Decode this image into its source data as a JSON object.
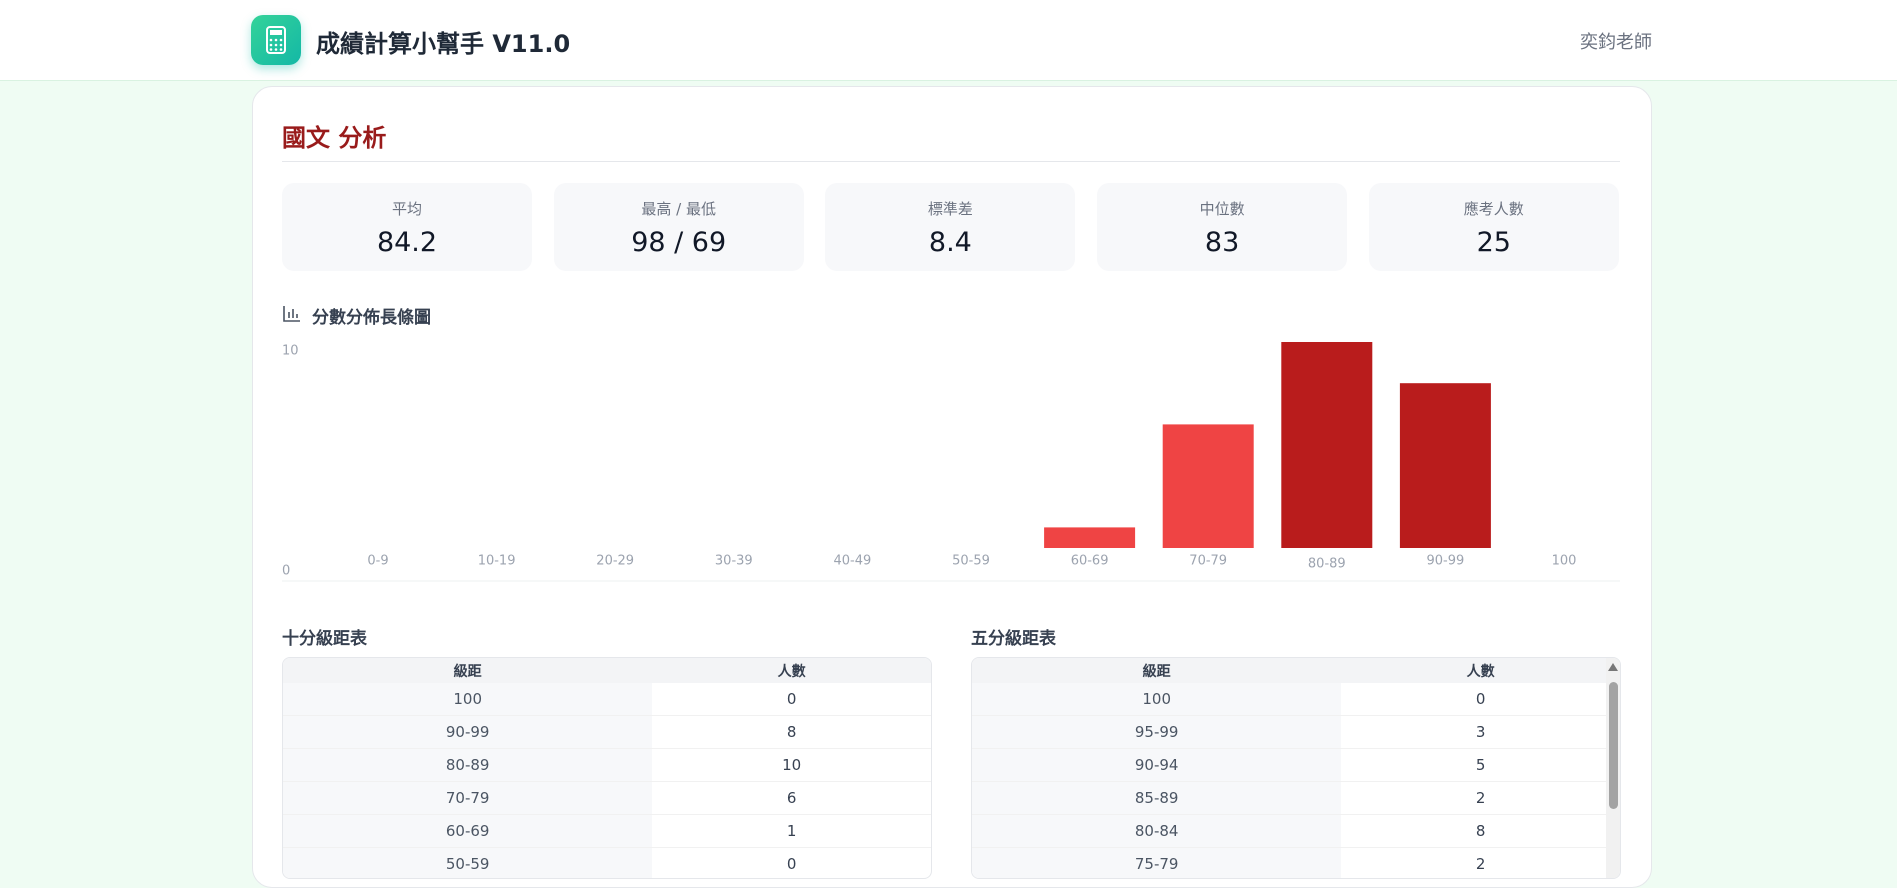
{
  "header": {
    "title": "成績計算小幫手 V11.0",
    "user": "奕鈞老師"
  },
  "section": {
    "title": "國文 分析"
  },
  "stats": [
    {
      "label": "平均",
      "value": 84.2
    },
    {
      "label": "最高 / 最低",
      "value": "98 / 69"
    },
    {
      "label": "標準差",
      "value": 8.4
    },
    {
      "label": "中位數",
      "value": 83
    },
    {
      "label": "應考人數",
      "value": 25
    }
  ],
  "chart_data": {
    "type": "bar",
    "title": "分數分佈長條圖",
    "categories": [
      "0-9",
      "10-19",
      "20-29",
      "30-39",
      "40-49",
      "50-59",
      "60-69",
      "70-79",
      "80-89",
      "90-99",
      "100"
    ],
    "values": [
      0,
      0,
      0,
      0,
      0,
      0,
      1,
      6,
      10,
      8,
      0
    ],
    "colors": [
      "#ef4444",
      "#ef4444",
      "#ef4444",
      "#ef4444",
      "#ef4444",
      "#ef4444",
      "#ef4444",
      "#ef4444",
      "#b91c1c",
      "#b91c1c",
      "#b91c1c"
    ],
    "ylim": [
      0,
      10
    ],
    "yticks": [
      0,
      10
    ],
    "grid": false
  },
  "tables": [
    {
      "title": "十分級距表",
      "columns": [
        "級距",
        "人數"
      ],
      "rows": [
        [
          "100",
          "0"
        ],
        [
          "90-99",
          "8"
        ],
        [
          "80-89",
          "10"
        ],
        [
          "70-79",
          "6"
        ],
        [
          "60-69",
          "1"
        ],
        [
          "50-59",
          "0"
        ]
      ]
    },
    {
      "title": "五分級距表",
      "columns": [
        "級距",
        "人數"
      ],
      "rows": [
        [
          "100",
          "0"
        ],
        [
          "95-99",
          "3"
        ],
        [
          "90-94",
          "5"
        ],
        [
          "85-89",
          "2"
        ],
        [
          "80-84",
          "8"
        ],
        [
          "75-79",
          "2"
        ]
      ]
    }
  ]
}
